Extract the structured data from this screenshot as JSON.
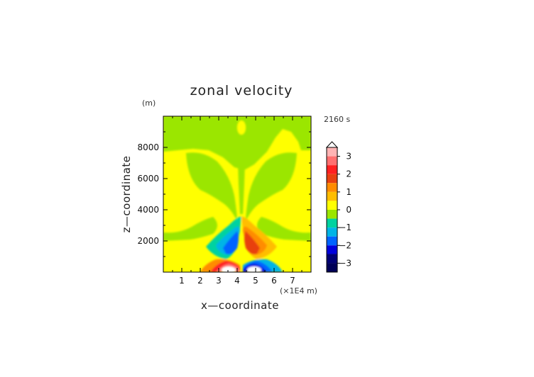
{
  "chart_data": {
    "type": "heatmap",
    "title": "zonal velocity",
    "time_label": "2160 s",
    "xlabel": "x—coordinate",
    "ylabel": "z—coordinate",
    "x_unit": "(×1E4 m)",
    "y_unit": "(m)",
    "xlim": [
      0,
      8
    ],
    "ylim": [
      0,
      10000
    ],
    "x_ticks": [
      "1",
      "2",
      "3",
      "4",
      "5",
      "6",
      "7"
    ],
    "y_ticks": [
      "2000",
      "4000",
      "6000",
      "8000"
    ],
    "colorbar": {
      "ticks": [
        "3",
        "2",
        "1",
        "0",
        "−1",
        "−2",
        "−3"
      ],
      "levels": [
        3.5,
        3.0,
        2.5,
        2.0,
        1.5,
        1.0,
        0.5,
        0.0,
        -0.5,
        -1.0,
        -1.5,
        -2.0,
        -2.5,
        -3.0,
        -3.5
      ],
      "colors": [
        "#ffb4b4",
        "#ff7070",
        "#ff2020",
        "#e84010",
        "#ff8c00",
        "#ffbd00",
        "#ffff00",
        "#9be600",
        "#00d2a0",
        "#00b4e6",
        "#0064ff",
        "#0000dc",
        "#00008c",
        "#000064"
      ]
    },
    "grid": false
  }
}
